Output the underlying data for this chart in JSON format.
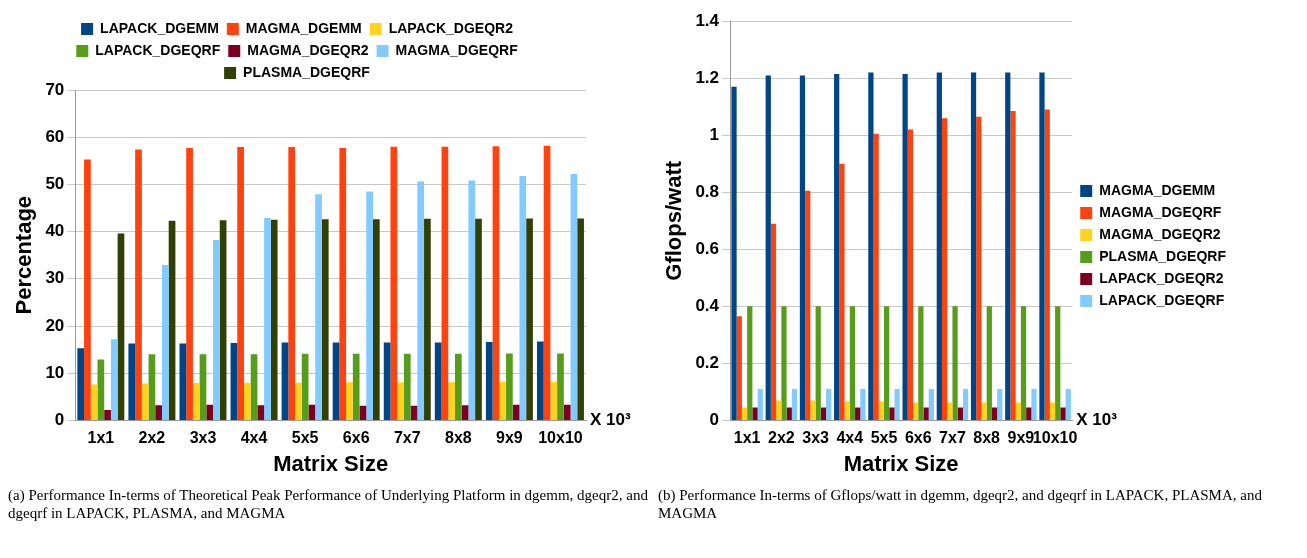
{
  "chart_data": [
    {
      "type": "bar",
      "xlabel": "Matrix Size",
      "ylabel": "Percentage",
      "categories": [
        "1x1",
        "2x2",
        "3x3",
        "4x4",
        "5x5",
        "6x6",
        "7x7",
        "8x8",
        "9x9",
        "10x10"
      ],
      "ylim": [
        0,
        70
      ],
      "yticks": [
        0,
        10,
        20,
        30,
        40,
        50,
        60,
        70
      ],
      "grid": "y",
      "legend": "top",
      "annotations": [
        "X 10³",
        "(a) Performance In-terms of Theoretical Peak Performance of Underlying Platform in dgemm, dgeqr2, and dgeqrf in LAPACK, PLASMA, and MAGMA"
      ],
      "series": [
        {
          "name": "LAPACK_DGEMM",
          "color": "#004586",
          "values": [
            15.3,
            16.3,
            16.3,
            16.4,
            16.5,
            16.5,
            16.5,
            16.5,
            16.6,
            16.7
          ]
        },
        {
          "name": "MAGMA_DGEMM",
          "color": "#ff420e",
          "values": [
            55.3,
            57.4,
            57.7,
            57.9,
            57.9,
            57.7,
            58,
            58,
            58.1,
            58.2
          ]
        },
        {
          "name": "LAPACK_DGEQR2",
          "color": "#ffd320",
          "values": [
            7.6,
            7.8,
            7.9,
            8,
            8,
            8.1,
            8.1,
            8.1,
            8.2,
            8.2
          ]
        },
        {
          "name": "LAPACK_DGEQRF",
          "color": "#579d1c",
          "values": [
            12.9,
            14,
            14,
            14,
            14.1,
            14.1,
            14.1,
            14.1,
            14.2,
            14.2
          ]
        },
        {
          "name": "MAGMA_DGEQR2",
          "color": "#7e0021",
          "values": [
            2.2,
            3.2,
            3.3,
            3.2,
            3.3,
            3.1,
            3.1,
            3.2,
            3.3,
            3.3
          ]
        },
        {
          "name": "MAGMA_DGEQRF",
          "color": "#83caff",
          "values": [
            17.2,
            32.9,
            38.2,
            42.9,
            47.9,
            48.5,
            50.6,
            50.8,
            51.8,
            52.2
          ]
        },
        {
          "name": "PLASMA_DGEQRF",
          "color": "#314004",
          "values": [
            39.6,
            42.3,
            42.4,
            42.5,
            42.6,
            42.6,
            42.7,
            42.7,
            42.8,
            42.8
          ]
        }
      ]
    },
    {
      "type": "bar",
      "xlabel": "Matrix Size",
      "ylabel": "Gflops/watt",
      "categories": [
        "1x1",
        "2x2",
        "3x3",
        "4x4",
        "5x5",
        "6x6",
        "7x7",
        "8x8",
        "9x9",
        "10x10"
      ],
      "ylim": [
        0,
        1.4
      ],
      "yticks": [
        0,
        {
          "value": 0.2,
          "label": "0.2"
        },
        {
          "value": 0.4,
          "label": "0.4"
        },
        {
          "value": 0.6,
          "label": "0.6"
        },
        {
          "value": 0.8,
          "label": "0.8"
        },
        1,
        {
          "value": 1.2,
          "label": "1.2"
        },
        {
          "value": 1.4,
          "label": "1.4"
        }
      ],
      "grid": "y",
      "legend": "right",
      "annotations": [
        "X 10³",
        "(b) Performance In-terms of Gflops/watt in dgemm, dgeqr2, and dgeqrf in LAPACK, PLASMA, and MAGMA"
      ],
      "series": [
        {
          "name": "MAGMA_DGEMM",
          "color": "#004586",
          "values": [
            1.17,
            1.21,
            1.21,
            1.215,
            1.22,
            1.215,
            1.22,
            1.22,
            1.22,
            1.22
          ]
        },
        {
          "name": "MAGMA_DGEQRF",
          "color": "#ff420e",
          "values": [
            0.365,
            0.69,
            0.805,
            0.9,
            1.005,
            1.02,
            1.06,
            1.065,
            1.085,
            1.09
          ]
        },
        {
          "name": "MAGMA_DGEQR2",
          "color": "#ffd320",
          "values": [
            0.045,
            0.07,
            0.07,
            0.067,
            0.067,
            0.063,
            0.063,
            0.063,
            0.063,
            0.063
          ]
        },
        {
          "name": "PLASMA_DGEQRF",
          "color": "#579d1c",
          "values": [
            0.4,
            0.4,
            0.4,
            0.4,
            0.4,
            0.4,
            0.4,
            0.4,
            0.4,
            0.4
          ]
        },
        {
          "name": "LAPACK_DGEQR2",
          "color": "#7e0021",
          "values": [
            0.045,
            0.045,
            0.045,
            0.045,
            0.045,
            0.045,
            0.045,
            0.045,
            0.045,
            0.045
          ]
        },
        {
          "name": "LAPACK_DGEQRF",
          "color": "#83caff",
          "values": [
            0.11,
            0.11,
            0.11,
            0.11,
            0.11,
            0.11,
            0.11,
            0.11,
            0.11,
            0.11
          ]
        }
      ]
    }
  ]
}
